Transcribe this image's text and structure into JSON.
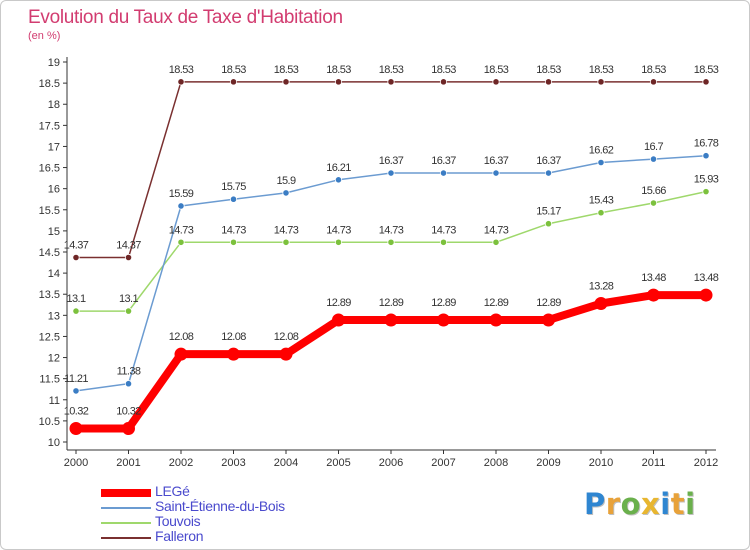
{
  "title": "Evolution du Taux de Taxe d'Habitation",
  "subtitle": "(en %)",
  "brand": {
    "letters": [
      {
        "ch": "P",
        "color": "#2f86d1"
      },
      {
        "ch": "r",
        "color": "#e8a23a"
      },
      {
        "ch": "o",
        "color": "#6ab04c"
      },
      {
        "ch": "x",
        "color": "#e8b630"
      },
      {
        "ch": "i",
        "color": "#2f86d1"
      },
      {
        "ch": "t",
        "color": "#e8a23a"
      },
      {
        "ch": "i",
        "color": "#6ab04c"
      }
    ]
  },
  "chart_data": {
    "type": "line",
    "title": "Evolution du Taux de Taxe d'Habitation",
    "ylabel": "(en %)",
    "xlabel": "",
    "ylim": [
      10,
      19
    ],
    "ytick_step": 0.5,
    "grid": false,
    "legend_position": "bottom-left",
    "x": [
      "2000",
      "2001",
      "2002",
      "2003",
      "2004",
      "2005",
      "2006",
      "2007",
      "2008",
      "2009",
      "2010",
      "2011",
      "2012"
    ],
    "series": [
      {
        "name": "LEGé",
        "color": "#ff0000",
        "marker_color": "#ff0000",
        "emphasis": true,
        "values": [
          10.32,
          10.32,
          12.08,
          12.08,
          12.08,
          12.89,
          12.89,
          12.89,
          12.89,
          12.89,
          13.28,
          13.48,
          13.48
        ],
        "labels": [
          "10.32",
          "10.32",
          "12.08",
          "12.08",
          "12.08",
          "12.89",
          "12.89",
          "12.89",
          "12.89",
          "12.89",
          "13.28",
          "13.48",
          "13.48"
        ]
      },
      {
        "name": "Saint-Étienne-du-Bois",
        "color": "#6b9bd1",
        "marker_color": "#3b7dc4",
        "emphasis": false,
        "values": [
          11.21,
          11.38,
          15.59,
          15.75,
          15.9,
          16.21,
          16.37,
          16.37,
          16.37,
          16.37,
          16.62,
          16.7,
          16.78
        ],
        "labels": [
          "11.21",
          "11.38",
          "15.59",
          "15.75",
          "15.9",
          "16.21",
          "16.37",
          "16.37",
          "16.37",
          "16.37",
          "16.62",
          "16.7",
          "16.78"
        ]
      },
      {
        "name": "Touvois",
        "color": "#9fd86c",
        "marker_color": "#7cc13d",
        "emphasis": false,
        "values": [
          13.1,
          13.1,
          14.73,
          14.73,
          14.73,
          14.73,
          14.73,
          14.73,
          14.73,
          15.17,
          15.43,
          15.66,
          15.93
        ],
        "labels": [
          "13.1",
          "13.1",
          "14.73",
          "14.73",
          "14.73",
          "14.73",
          "14.73",
          "14.73",
          "14.73",
          "15.17",
          "15.43",
          "15.66",
          "15.93"
        ]
      },
      {
        "name": "Falleron",
        "color": "#7a3030",
        "marker_color": "#6e2626",
        "emphasis": false,
        "values": [
          14.37,
          14.37,
          18.53,
          18.53,
          18.53,
          18.53,
          18.53,
          18.53,
          18.53,
          18.53,
          18.53,
          18.53,
          18.53
        ],
        "labels": [
          "14.37",
          "14.37",
          "18.53",
          "18.53",
          "18.53",
          "18.53",
          "18.53",
          "18.53",
          "18.53",
          "18.53",
          "18.53",
          "18.53",
          "18.53"
        ]
      }
    ]
  }
}
